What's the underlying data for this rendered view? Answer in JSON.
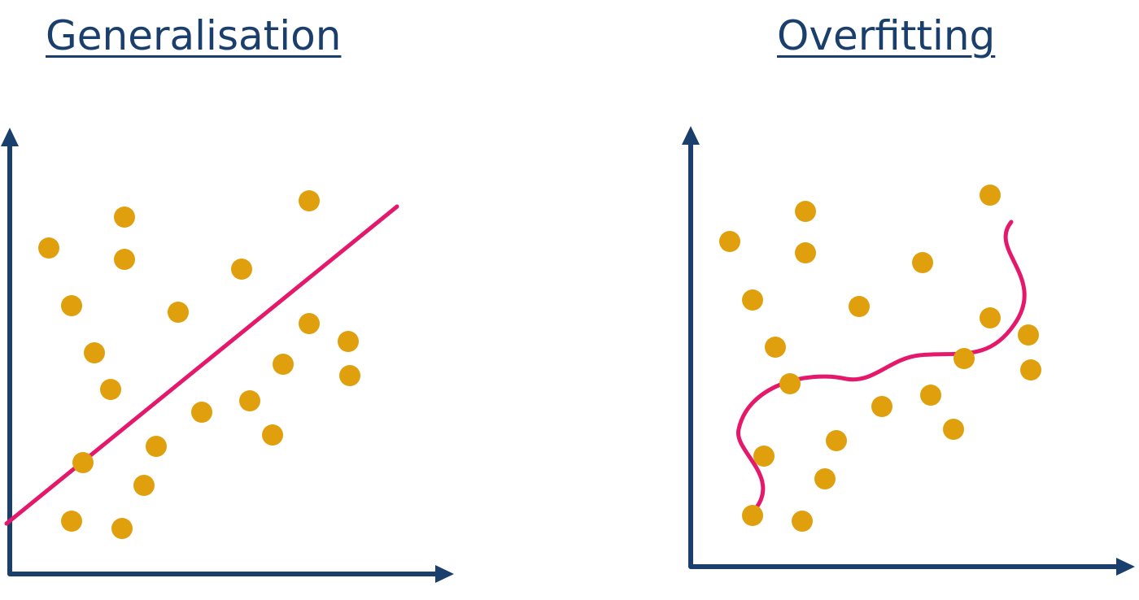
{
  "panels": [
    {
      "title": "Generalisation",
      "fit": "linear",
      "points": [
        [
          60,
          305
        ],
        [
          153,
          267
        ],
        [
          153,
          319
        ],
        [
          88,
          376
        ],
        [
          116,
          434
        ],
        [
          136,
          479
        ],
        [
          219,
          384
        ],
        [
          297,
          331
        ],
        [
          380,
          247
        ],
        [
          380,
          398
        ],
        [
          428,
          420
        ],
        [
          430,
          462
        ],
        [
          348,
          448
        ],
        [
          307,
          493
        ],
        [
          248,
          507
        ],
        [
          335,
          535
        ],
        [
          192,
          549
        ],
        [
          102,
          569
        ],
        [
          177,
          597
        ],
        [
          88,
          641
        ],
        [
          150,
          650
        ]
      ]
    },
    {
      "title": "Overfitting",
      "fit": "wavy",
      "points": [
        [
          897,
          297
        ],
        [
          990,
          260
        ],
        [
          990,
          311
        ],
        [
          925,
          369
        ],
        [
          953,
          427
        ],
        [
          971,
          472
        ],
        [
          1056,
          377
        ],
        [
          1134,
          323
        ],
        [
          1217,
          240
        ],
        [
          1217,
          391
        ],
        [
          1264,
          412
        ],
        [
          1267,
          455
        ],
        [
          1185,
          441
        ],
        [
          1144,
          486
        ],
        [
          1084,
          500
        ],
        [
          1172,
          528
        ],
        [
          1028,
          542
        ],
        [
          939,
          561
        ],
        [
          1014,
          589
        ],
        [
          925,
          634
        ],
        [
          986,
          641
        ]
      ]
    }
  ],
  "colors": {
    "title": "#1b3f6c",
    "axis": "#1b3f6c",
    "point": "#e0a00e",
    "fit": "#e5196b"
  }
}
